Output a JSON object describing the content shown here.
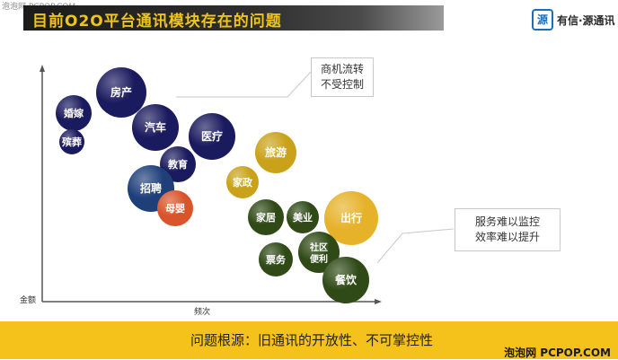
{
  "watermark_top": "泡泡网 PCPOP.COM",
  "title": "目前O2O平台通讯模块存在的问题",
  "logo": {
    "mark": "源",
    "text": "有信·源通讯"
  },
  "axes": {
    "y_label": "金额",
    "x_label": "频次"
  },
  "callouts": [
    {
      "lines": [
        "商机流转",
        "不受控制"
      ]
    },
    {
      "lines": [
        "服务难以监控",
        "效率难以提升"
      ]
    }
  ],
  "bubbles": [
    {
      "label": "房产",
      "color": "#1a1a5e"
    },
    {
      "label": "婚嫁",
      "color": "#1a1a5e"
    },
    {
      "label": "殡葬",
      "color": "#1a1a5e"
    },
    {
      "label": "汽车",
      "color": "#1a1a5e"
    },
    {
      "label": "医疗",
      "color": "#1a1a5e"
    },
    {
      "label": "教育",
      "color": "#1a1a5e"
    },
    {
      "label": "招聘",
      "color": "#1f3f7a"
    },
    {
      "label": "母婴",
      "color": "#d9542a"
    },
    {
      "label": "旅游",
      "color": "#c9a21a"
    },
    {
      "label": "家政",
      "color": "#c9a21a"
    },
    {
      "label": "出行",
      "color": "#e6b22a"
    },
    {
      "label": "家居",
      "color": "#2f4a16"
    },
    {
      "label": "美业",
      "color": "#2f4a16"
    },
    {
      "label": "社区便利",
      "color": "#2f4a16"
    },
    {
      "label": "票务",
      "color": "#2f4a16"
    },
    {
      "label": "餐饮",
      "color": "#2f4a16"
    }
  ],
  "footer": "问题根源：旧通讯的开放性、不可掌控性",
  "watermark_bottom": "泡泡网 PCPOP.COM"
}
